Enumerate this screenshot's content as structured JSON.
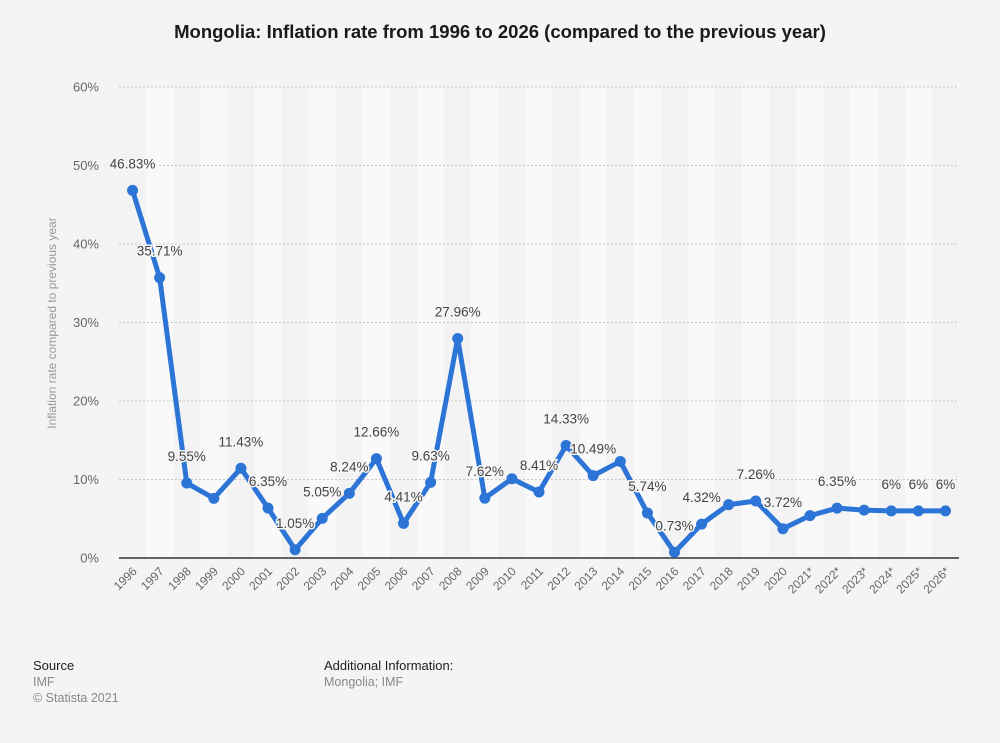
{
  "title": "Mongolia: Inflation rate from 1996 to 2026 (compared to the previous year)",
  "colors": {
    "line": "#2c74d6",
    "background": "#f4f4f4",
    "stripe_light": "#f9f9f9",
    "stripe_dark": "#f3f3f3",
    "grid": "#c8c8c8",
    "axis": "#333333",
    "label": "#444444"
  },
  "chart_data": {
    "type": "line",
    "title": "Mongolia: Inflation rate from 1996 to 2026 (compared to the previous year)",
    "xlabel": "",
    "ylabel": "Inflation rate compared to previous year",
    "ylim": [
      0,
      60
    ],
    "yticks": [
      0,
      10,
      20,
      30,
      40,
      50,
      60
    ],
    "ytick_labels": [
      "0%",
      "10%",
      "20%",
      "30%",
      "40%",
      "50%",
      "60%"
    ],
    "grid": true,
    "categories": [
      "1996",
      "1997",
      "1998",
      "1999",
      "2000",
      "2001",
      "2002",
      "2003",
      "2004",
      "2005",
      "2006",
      "2007",
      "2008",
      "2009",
      "2010",
      "2011",
      "2012",
      "2013",
      "2014",
      "2015",
      "2016",
      "2017",
      "2018",
      "2019",
      "2020",
      "2021*",
      "2022*",
      "2023*",
      "2024*",
      "2025*",
      "2026*"
    ],
    "series": [
      {
        "name": "Inflation rate",
        "values": [
          46.83,
          35.71,
          9.55,
          7.6,
          11.43,
          6.35,
          1.05,
          5.05,
          8.24,
          12.66,
          4.41,
          9.63,
          27.96,
          7.62,
          10.1,
          8.41,
          14.33,
          10.49,
          12.3,
          5.74,
          0.73,
          4.32,
          6.8,
          7.26,
          3.72,
          5.4,
          6.35,
          6.1,
          6,
          6,
          6
        ],
        "data_labels": [
          "46.83%",
          "35.71%",
          "9.55%",
          null,
          "11.43%",
          "6.35%",
          "1.05%",
          "5.05%",
          "8.24%",
          "12.66%",
          "4.41%",
          "9.63%",
          "27.96%",
          "7.62%",
          null,
          "8.41%",
          "14.33%",
          "10.49%",
          null,
          "5.74%",
          "0.73%",
          "4.32%",
          null,
          "7.26%",
          "3.72%",
          null,
          "6.35%",
          null,
          "6%",
          "6%",
          "6%"
        ]
      }
    ]
  },
  "footer": {
    "source_heading": "Source",
    "source_name": "IMF",
    "copyright": "© Statista 2021",
    "additional_heading": "Additional Information:",
    "additional_text": "Mongolia; IMF"
  }
}
